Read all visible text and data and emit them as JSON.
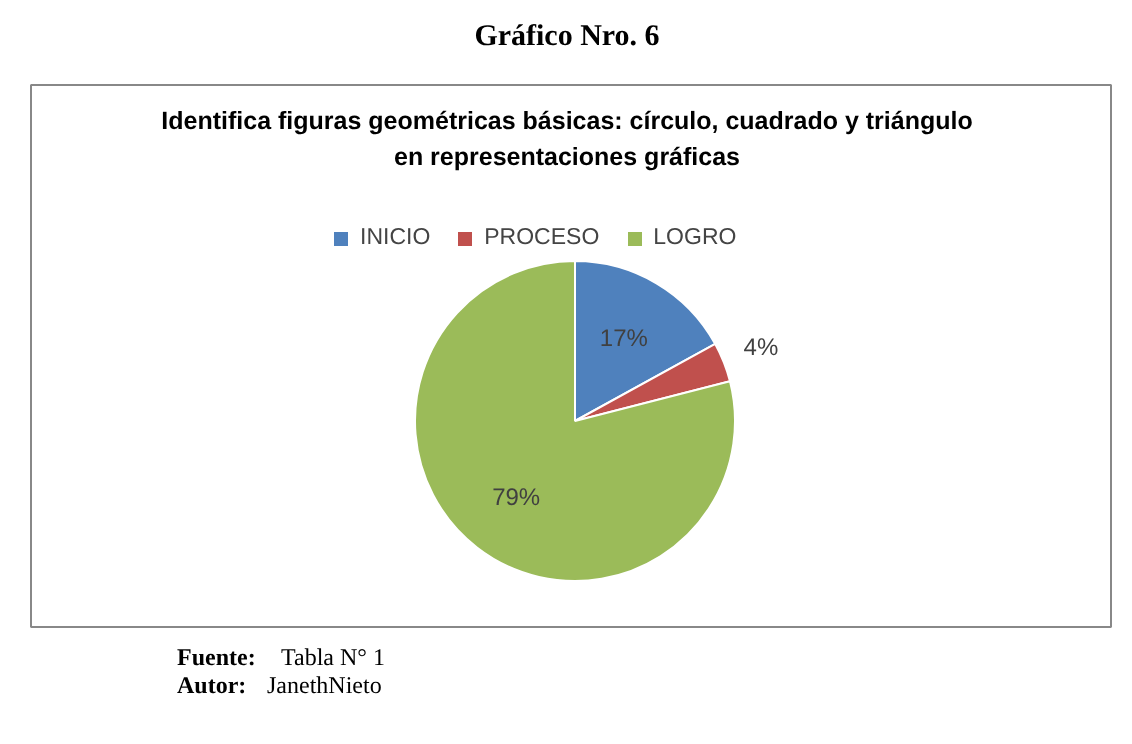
{
  "chart_data": {
    "type": "pie",
    "title": "Gráfico Nro. 6",
    "subtitle": "Identifica figuras geométricas básicas: círculo, cuadrado y triángulo\nen representaciones gráficas",
    "categories": [
      "INICIO",
      "PROCESO",
      "LOGRO"
    ],
    "values": [
      17,
      4,
      79
    ],
    "colors": [
      "#4f81bd",
      "#c0504d",
      "#9bbb59"
    ],
    "value_labels": [
      "17%",
      "4%",
      "79%"
    ],
    "legend": "top",
    "annotations": [
      "Fuente: Tabla N° 1",
      "Autor: JanethNieto"
    ]
  }
}
